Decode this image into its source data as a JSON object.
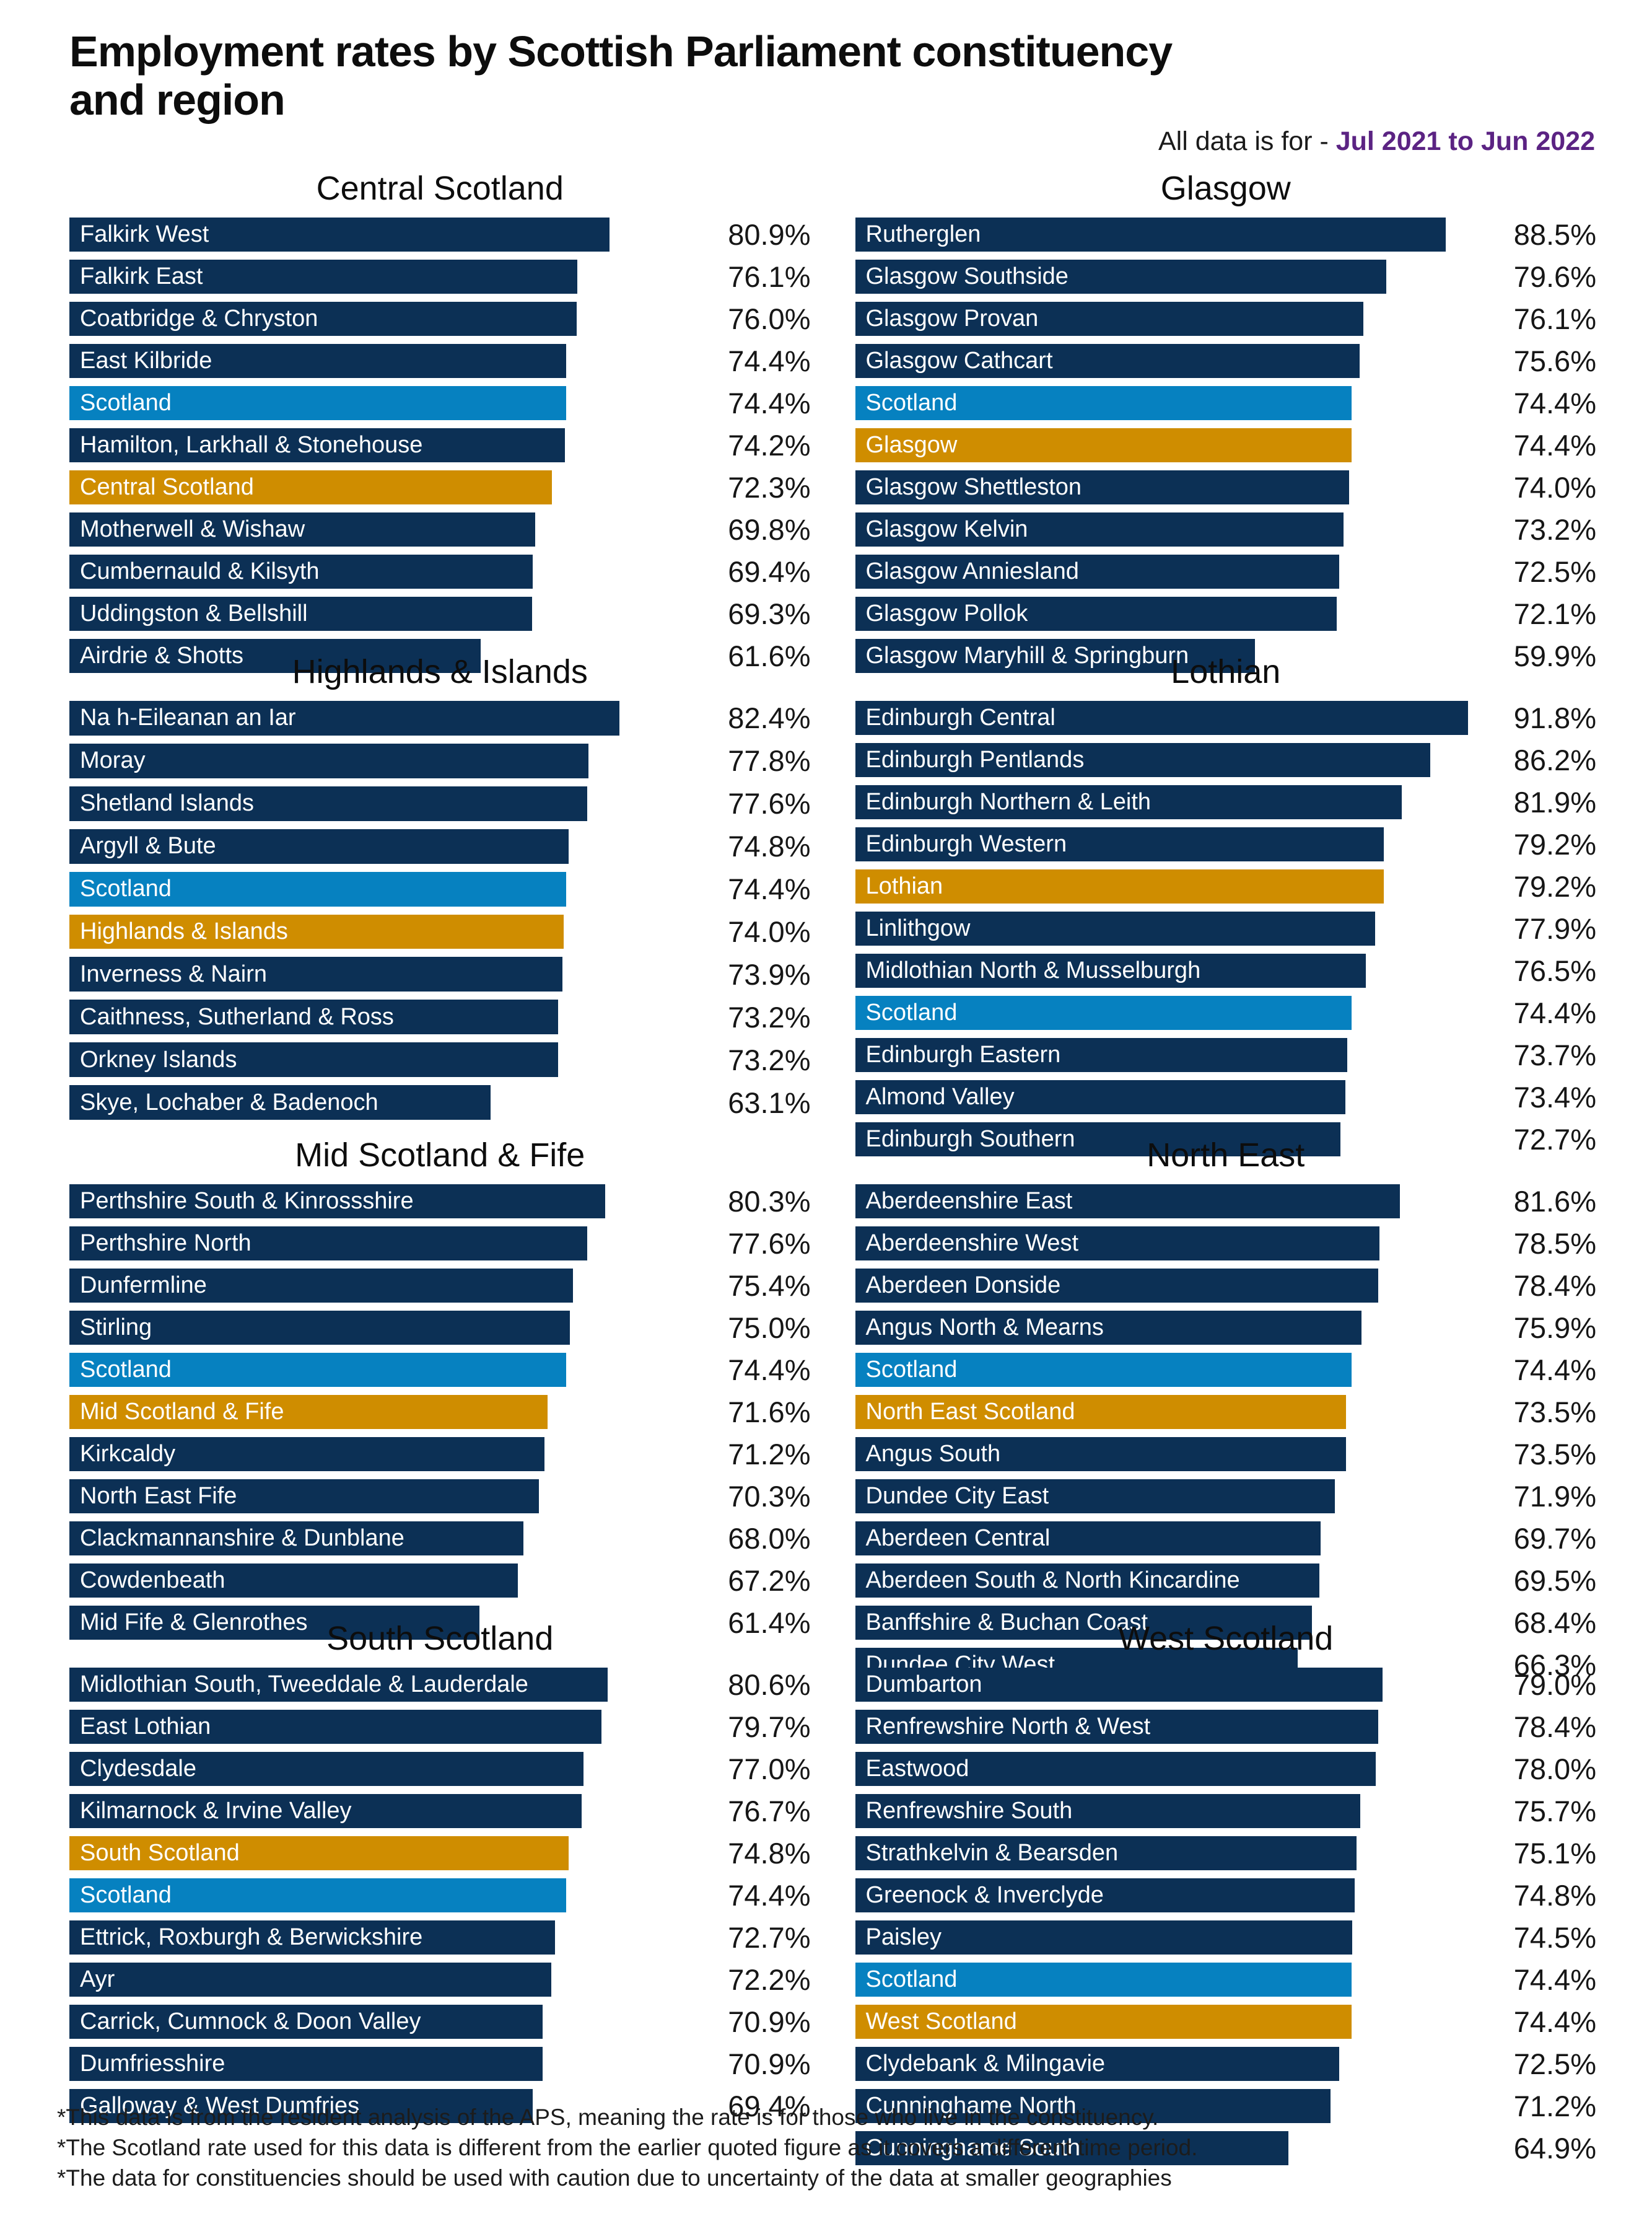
{
  "header": {
    "title": "Employment rates by Scottish Parliament constituency and region",
    "title_lines": [
      "Employment rates by Scottish Parliament constituency",
      "and region"
    ],
    "subtitle_prefix": "All data is for - ",
    "subtitle_period": "Jul 2021 to Jun 2022"
  },
  "colors": {
    "constituency_bar": "#0c3055",
    "scotland_bar": "#0681c0",
    "region_bar": "#cf8d00",
    "period_text": "#5b2383"
  },
  "footnotes": [
    "*This data is from the resident analysis of the APS, meaning the rate is for those who live in the constituency.",
    "*The Scotland rate used for this data is different from the earlier quoted figure as it covers a different time period.",
    "*The data for constituencies should be used with caution due to uncertainty of the data at smaller geographies"
  ],
  "chart_data": [
    {
      "type": "bar",
      "orientation": "horizontal",
      "title": "Central Scotland",
      "xlim": [
        0,
        92
      ],
      "value_unit": "%",
      "items": [
        {
          "label": "Falkirk West",
          "value": 80.9,
          "kind": "constituency"
        },
        {
          "label": "Falkirk East",
          "value": 76.1,
          "kind": "constituency"
        },
        {
          "label": "Coatbridge & Chryston",
          "value": 76.0,
          "kind": "constituency"
        },
        {
          "label": "East Kilbride",
          "value": 74.4,
          "kind": "constituency"
        },
        {
          "label": "Scotland",
          "value": 74.4,
          "kind": "scotland"
        },
        {
          "label": "Hamilton, Larkhall & Stonehouse",
          "value": 74.2,
          "kind": "constituency"
        },
        {
          "label": "Central Scotland",
          "value": 72.3,
          "kind": "region"
        },
        {
          "label": "Motherwell & Wishaw",
          "value": 69.8,
          "kind": "constituency"
        },
        {
          "label": "Cumbernauld & Kilsyth",
          "value": 69.4,
          "kind": "constituency"
        },
        {
          "label": "Uddingston & Bellshill",
          "value": 69.3,
          "kind": "constituency"
        },
        {
          "label": "Airdrie & Shotts",
          "value": 61.6,
          "kind": "constituency"
        }
      ]
    },
    {
      "type": "bar",
      "orientation": "horizontal",
      "title": "Glasgow",
      "xlim": [
        0,
        92
      ],
      "value_unit": "%",
      "items": [
        {
          "label": "Rutherglen",
          "value": 88.5,
          "kind": "constituency"
        },
        {
          "label": "Glasgow Southside",
          "value": 79.6,
          "kind": "constituency"
        },
        {
          "label": "Glasgow Provan",
          "value": 76.1,
          "kind": "constituency"
        },
        {
          "label": "Glasgow Cathcart",
          "value": 75.6,
          "kind": "constituency"
        },
        {
          "label": "Scotland",
          "value": 74.4,
          "kind": "scotland"
        },
        {
          "label": "Glasgow",
          "value": 74.4,
          "kind": "region"
        },
        {
          "label": "Glasgow Shettleston",
          "value": 74.0,
          "kind": "constituency"
        },
        {
          "label": "Glasgow Kelvin",
          "value": 73.2,
          "kind": "constituency"
        },
        {
          "label": "Glasgow Anniesland",
          "value": 72.5,
          "kind": "constituency"
        },
        {
          "label": "Glasgow Pollok",
          "value": 72.1,
          "kind": "constituency"
        },
        {
          "label": "Glasgow Maryhill & Springburn",
          "value": 59.9,
          "kind": "constituency"
        }
      ]
    },
    {
      "type": "bar",
      "orientation": "horizontal",
      "title": "Highlands & Islands",
      "xlim": [
        0,
        92
      ],
      "value_unit": "%",
      "items": [
        {
          "label": "Na h-Eileanan an Iar",
          "value": 82.4,
          "kind": "constituency"
        },
        {
          "label": "Moray",
          "value": 77.8,
          "kind": "constituency"
        },
        {
          "label": "Shetland Islands",
          "value": 77.6,
          "kind": "constituency"
        },
        {
          "label": "Argyll & Bute",
          "value": 74.8,
          "kind": "constituency"
        },
        {
          "label": "Scotland",
          "value": 74.4,
          "kind": "scotland"
        },
        {
          "label": "Highlands & Islands",
          "value": 74.0,
          "kind": "region"
        },
        {
          "label": "Inverness & Nairn",
          "value": 73.9,
          "kind": "constituency"
        },
        {
          "label": "Caithness, Sutherland & Ross",
          "value": 73.2,
          "kind": "constituency"
        },
        {
          "label": "Orkney Islands",
          "value": 73.2,
          "kind": "constituency"
        },
        {
          "label": "Skye, Lochaber & Badenoch",
          "value": 63.1,
          "kind": "constituency"
        }
      ]
    },
    {
      "type": "bar",
      "orientation": "horizontal",
      "title": "Lothian",
      "xlim": [
        0,
        92
      ],
      "value_unit": "%",
      "items": [
        {
          "label": "Edinburgh Central",
          "value": 91.8,
          "kind": "constituency"
        },
        {
          "label": "Edinburgh Pentlands",
          "value": 86.2,
          "kind": "constituency"
        },
        {
          "label": "Edinburgh Northern & Leith",
          "value": 81.9,
          "kind": "constituency"
        },
        {
          "label": "Edinburgh Western",
          "value": 79.2,
          "kind": "constituency"
        },
        {
          "label": "Lothian",
          "value": 79.2,
          "kind": "region"
        },
        {
          "label": "Linlithgow",
          "value": 77.9,
          "kind": "constituency"
        },
        {
          "label": "Midlothian North & Musselburgh",
          "value": 76.5,
          "kind": "constituency"
        },
        {
          "label": "Scotland",
          "value": 74.4,
          "kind": "scotland"
        },
        {
          "label": "Edinburgh Eastern",
          "value": 73.7,
          "kind": "constituency"
        },
        {
          "label": "Almond Valley",
          "value": 73.4,
          "kind": "constituency"
        },
        {
          "label": "Edinburgh Southern",
          "value": 72.7,
          "kind": "constituency"
        }
      ]
    },
    {
      "type": "bar",
      "orientation": "horizontal",
      "title": "Mid Scotland & Fife",
      "xlim": [
        0,
        92
      ],
      "value_unit": "%",
      "items": [
        {
          "label": "Perthshire South & Kinrossshire",
          "value": 80.3,
          "kind": "constituency"
        },
        {
          "label": "Perthshire North",
          "value": 77.6,
          "kind": "constituency"
        },
        {
          "label": "Dunfermline",
          "value": 75.4,
          "kind": "constituency"
        },
        {
          "label": "Stirling",
          "value": 75.0,
          "kind": "constituency"
        },
        {
          "label": "Scotland",
          "value": 74.4,
          "kind": "scotland"
        },
        {
          "label": "Mid Scotland & Fife",
          "value": 71.6,
          "kind": "region"
        },
        {
          "label": "Kirkcaldy",
          "value": 71.2,
          "kind": "constituency"
        },
        {
          "label": "North East Fife",
          "value": 70.3,
          "kind": "constituency"
        },
        {
          "label": "Clackmannanshire & Dunblane",
          "value": 68.0,
          "kind": "constituency"
        },
        {
          "label": "Cowdenbeath",
          "value": 67.2,
          "kind": "constituency"
        },
        {
          "label": "Mid Fife & Glenrothes",
          "value": 61.4,
          "kind": "constituency"
        }
      ]
    },
    {
      "type": "bar",
      "orientation": "horizontal",
      "title": "North East",
      "xlim": [
        0,
        92
      ],
      "value_unit": "%",
      "items": [
        {
          "label": "Aberdeenshire East",
          "value": 81.6,
          "kind": "constituency"
        },
        {
          "label": "Aberdeenshire West",
          "value": 78.5,
          "kind": "constituency"
        },
        {
          "label": "Aberdeen Donside",
          "value": 78.4,
          "kind": "constituency"
        },
        {
          "label": "Angus North & Mearns",
          "value": 75.9,
          "kind": "constituency"
        },
        {
          "label": "Scotland",
          "value": 74.4,
          "kind": "scotland"
        },
        {
          "label": "North East Scotland",
          "value": 73.5,
          "kind": "region"
        },
        {
          "label": "Angus South",
          "value": 73.5,
          "kind": "constituency"
        },
        {
          "label": "Dundee City East",
          "value": 71.9,
          "kind": "constituency"
        },
        {
          "label": "Aberdeen Central",
          "value": 69.7,
          "kind": "constituency"
        },
        {
          "label": "Aberdeen South & North Kincardine",
          "value": 69.5,
          "kind": "constituency"
        },
        {
          "label": "Banffshire & Buchan Coast",
          "value": 68.4,
          "kind": "constituency"
        },
        {
          "label": "Dundee City West",
          "value": 66.3,
          "kind": "constituency"
        }
      ]
    },
    {
      "type": "bar",
      "orientation": "horizontal",
      "title": "South Scotland",
      "xlim": [
        0,
        92
      ],
      "value_unit": "%",
      "items": [
        {
          "label": "Midlothian South, Tweeddale & Lauderdale",
          "value": 80.6,
          "kind": "constituency"
        },
        {
          "label": "East Lothian",
          "value": 79.7,
          "kind": "constituency"
        },
        {
          "label": "Clydesdale",
          "value": 77.0,
          "kind": "constituency"
        },
        {
          "label": "Kilmarnock & Irvine Valley",
          "value": 76.7,
          "kind": "constituency"
        },
        {
          "label": "South Scotland",
          "value": 74.8,
          "kind": "region"
        },
        {
          "label": "Scotland",
          "value": 74.4,
          "kind": "scotland"
        },
        {
          "label": "Ettrick, Roxburgh & Berwickshire",
          "value": 72.7,
          "kind": "constituency"
        },
        {
          "label": "Ayr",
          "value": 72.2,
          "kind": "constituency"
        },
        {
          "label": "Carrick, Cumnock & Doon Valley",
          "value": 70.9,
          "kind": "constituency"
        },
        {
          "label": "Dumfriesshire",
          "value": 70.9,
          "kind": "constituency"
        },
        {
          "label": "Galloway & West Dumfries",
          "value": 69.4,
          "kind": "constituency"
        }
      ]
    },
    {
      "type": "bar",
      "orientation": "horizontal",
      "title": "West Scotland",
      "xlim": [
        0,
        92
      ],
      "value_unit": "%",
      "items": [
        {
          "label": "Dumbarton",
          "value": 79.0,
          "kind": "constituency"
        },
        {
          "label": "Renfrewshire North & West",
          "value": 78.4,
          "kind": "constituency"
        },
        {
          "label": "Eastwood",
          "value": 78.0,
          "kind": "constituency"
        },
        {
          "label": "Renfrewshire South",
          "value": 75.7,
          "kind": "constituency"
        },
        {
          "label": "Strathkelvin & Bearsden",
          "value": 75.1,
          "kind": "constituency"
        },
        {
          "label": "Greenock & Inverclyde",
          "value": 74.8,
          "kind": "constituency"
        },
        {
          "label": "Paisley",
          "value": 74.5,
          "kind": "constituency"
        },
        {
          "label": "Scotland",
          "value": 74.4,
          "kind": "scotland"
        },
        {
          "label": "West Scotland",
          "value": 74.4,
          "kind": "region"
        },
        {
          "label": "Clydebank & Milngavie",
          "value": 72.5,
          "kind": "constituency"
        },
        {
          "label": "Cunninghame North",
          "value": 71.2,
          "kind": "constituency"
        },
        {
          "label": "Cunninghame South",
          "value": 64.9,
          "kind": "constituency"
        }
      ]
    }
  ]
}
